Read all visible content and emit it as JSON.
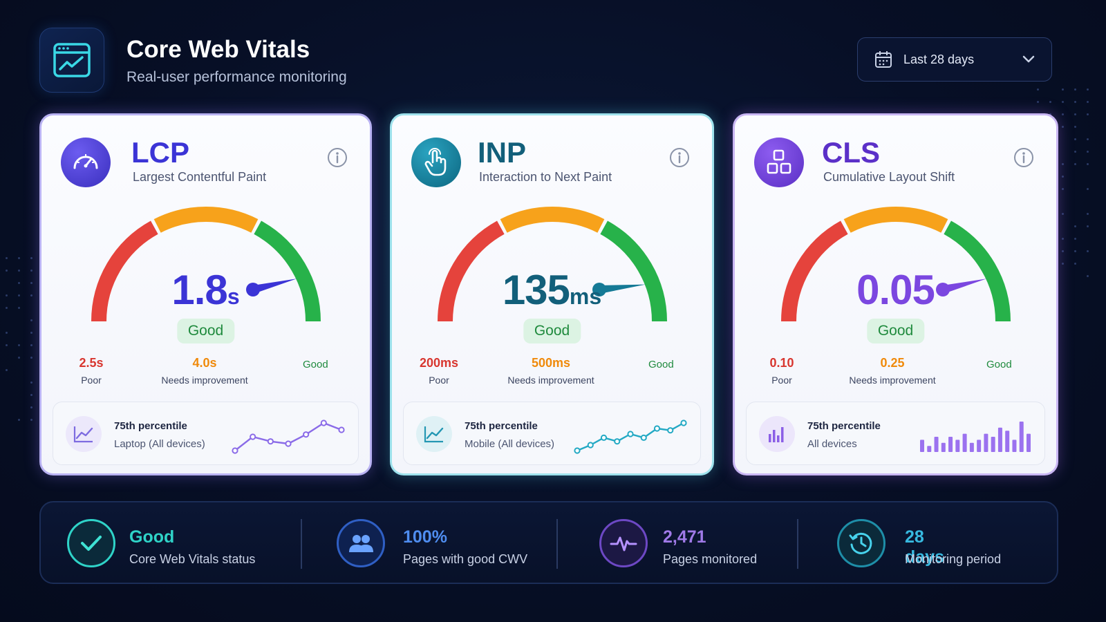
{
  "header": {
    "title": "Core Web Vitals",
    "subtitle": "Real-user performance monitoring",
    "range": {
      "label": "Last 28 days"
    }
  },
  "colors": {
    "poor": "#e5433c",
    "needs_improvement": "#f7a21b",
    "good": "#27b24a",
    "lcp_accent": "#3b34d6",
    "inp_accent": "#157a96",
    "cls_accent": "#7b47e0"
  },
  "cards": [
    {
      "key": "lcp",
      "name": "LCP",
      "full_name": "Largest Contentful Paint",
      "value": "1.8",
      "unit": "s",
      "rating": "Good",
      "gauge_fraction": 0.86,
      "thresholds": {
        "poor_value": "2.5",
        "poor_unit": "s",
        "poor_label": "Poor",
        "ni_value": "4.0",
        "ni_unit": "s",
        "ni_label": "Needs improvement",
        "good_label": "Good"
      },
      "percentile": {
        "title": "75th percentile",
        "subtitle": "Laptop (All devices)"
      },
      "icon": "speedometer-icon",
      "trend_icon": "line-chart-icon",
      "sparkline": [
        2,
        5,
        4,
        3.5,
        5.5,
        8,
        6.5
      ]
    },
    {
      "key": "inp",
      "name": "INP",
      "full_name": "Interaction to Next Paint",
      "value": "135",
      "unit": "ms",
      "rating": "Good",
      "gauge_fraction": 0.88,
      "thresholds": {
        "poor_value": "200",
        "poor_unit": "ms",
        "poor_label": "Poor",
        "ni_value": "500",
        "ni_unit": "ms",
        "ni_label": "Needs improvement",
        "good_label": "Good"
      },
      "percentile": {
        "title": "75th percentile",
        "subtitle": "Mobile (All devices)"
      },
      "icon": "pointer-hand-icon",
      "trend_icon": "line-chart-icon",
      "sparkline": [
        1.5,
        3,
        5,
        4,
        6,
        5,
        7.5,
        7,
        9
      ]
    },
    {
      "key": "cls",
      "name": "CLS",
      "full_name": "Cumulative Layout Shift",
      "value": "0.05",
      "unit": "",
      "rating": "Good",
      "gauge_fraction": 0.86,
      "thresholds": {
        "poor_value": "0.10",
        "poor_unit": "",
        "poor_label": "Poor",
        "ni_value": "0.25",
        "ni_unit": "",
        "ni_label": "Needs improvement",
        "good_label": "Good"
      },
      "percentile": {
        "title": "75th percentile",
        "subtitle": "All devices"
      },
      "icon": "layout-blocks-icon",
      "trend_icon": "bar-chart-icon",
      "bars": [
        4,
        2,
        5,
        3,
        5,
        4,
        6,
        3,
        4,
        6,
        5,
        8,
        7,
        4,
        10,
        6
      ]
    }
  ],
  "status": [
    {
      "value": "Good",
      "label": "Core Web Vitals status",
      "icon": "check-icon",
      "color": "#2fd3c8"
    },
    {
      "value": "100%",
      "label": "Pages with good CWV",
      "icon": "users-icon",
      "color": "#4f8df0"
    },
    {
      "value": "2,471",
      "label": "Pages monitored",
      "icon": "pulse-icon",
      "color": "#a07ae8"
    },
    {
      "value": "28 days",
      "label": "Monitoring period",
      "icon": "history-clock-icon",
      "color": "#37b9e0"
    }
  ]
}
